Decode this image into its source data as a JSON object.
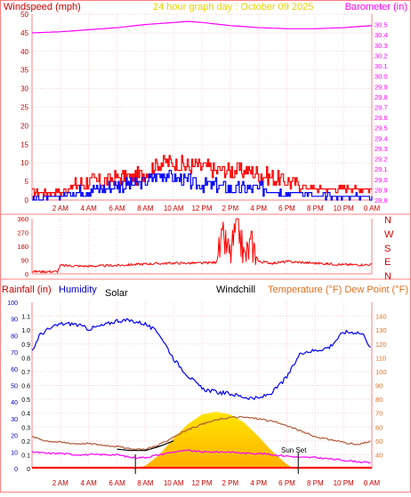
{
  "header": {
    "graph_title": "24 hour graph day : October 09 2025",
    "left_title": "Windspeed (mph)",
    "right_title": "Barometer (in)"
  },
  "colors": {
    "windspeed": "#ff0000",
    "gust": "#ff0000",
    "average": "#0000ff",
    "barometer": "#ff00ff",
    "direction": "#ff0000",
    "humidity": "#0000ff",
    "temperature": "#b05a3a",
    "dewpoint": "#ff00ff",
    "windchill": "#000000",
    "solar_fill": "#ffd700",
    "axis": "#ff8080",
    "grid": "#ffd0d0"
  },
  "time_ticks": [
    "2 AM",
    "4 AM",
    "6 AM",
    "8 AM",
    "10 AM",
    "12 PM",
    "2 PM",
    "4 PM",
    "6 PM",
    "8 PM",
    "10 PM",
    "0 AM"
  ],
  "compass": [
    "N",
    "W",
    "S",
    "E",
    "N"
  ],
  "chart_data": [
    {
      "type": "line",
      "title": "24 hour graph day : October 09 2025",
      "panel": "wind-barometer",
      "ylabel": "Windspeed (mph)",
      "y2label": "Barometer (in)",
      "x_unit": "hours",
      "xlim": [
        0,
        24
      ],
      "ylim": [
        0,
        50
      ],
      "yticks": [
        0,
        5,
        10,
        15,
        20,
        25,
        30,
        35,
        40,
        45,
        50
      ],
      "y2lim": [
        28.8,
        30.6
      ],
      "y2ticks": [
        "28.8",
        "28.9",
        "29.0",
        "29.1",
        "29.2",
        "29.3",
        "29.4",
        "29.5",
        "29.6",
        "29.7",
        "29.8",
        "29.9",
        "30.0",
        "30.1",
        "30.2",
        "30.3",
        "30.4",
        "30.5"
      ],
      "series": [
        {
          "name": "Barometer",
          "axis": "right",
          "x": [
            0,
            2,
            4,
            6,
            8,
            10,
            11,
            12,
            14,
            16,
            18,
            20,
            22,
            24
          ],
          "values": [
            30.42,
            30.43,
            30.45,
            30.47,
            30.5,
            30.52,
            30.53,
            30.52,
            30.49,
            30.47,
            30.46,
            30.46,
            30.47,
            30.49
          ]
        },
        {
          "name": "Gust",
          "axis": "left",
          "x": [
            0,
            1,
            2,
            3,
            4,
            5,
            6,
            7,
            8,
            8.5,
            9,
            9.5,
            10,
            11,
            12,
            13,
            14,
            15,
            16,
            17,
            18,
            19,
            20,
            21,
            22,
            23,
            24
          ],
          "values": [
            2,
            2,
            2,
            4,
            5,
            5,
            6,
            6,
            7,
            9,
            10,
            10,
            10,
            9,
            9,
            8,
            8,
            8,
            7,
            6,
            5,
            4,
            3,
            3,
            3,
            3,
            3
          ]
        },
        {
          "name": "Average",
          "axis": "left",
          "x": [
            0,
            1,
            2,
            3,
            4,
            5,
            6,
            7,
            8,
            8.5,
            9,
            9.5,
            10,
            11,
            12,
            13,
            14,
            15,
            16,
            17,
            18,
            19,
            20,
            21,
            22,
            23,
            24
          ],
          "values": [
            0.5,
            0.5,
            1,
            2,
            3,
            3,
            4,
            4,
            5,
            6,
            7,
            7,
            6,
            5,
            4,
            4,
            3,
            3,
            3,
            3,
            2,
            2,
            1,
            1,
            1,
            1,
            1
          ]
        }
      ]
    },
    {
      "type": "line",
      "panel": "wind-direction",
      "x_unit": "hours",
      "xlim": [
        0,
        24
      ],
      "ylim": [
        0,
        360
      ],
      "yticks": [
        0,
        90,
        180,
        270,
        360
      ],
      "series": [
        {
          "name": "Wind direction",
          "x": [
            0,
            1.8,
            2,
            4,
            6,
            8,
            10,
            12,
            13,
            13.5,
            14,
            14.5,
            15,
            15.5,
            16,
            17,
            18,
            20,
            22,
            24
          ],
          "values": [
            15,
            15,
            55,
            50,
            55,
            65,
            70,
            70,
            75,
            230,
            120,
            330,
            100,
            200,
            80,
            70,
            80,
            70,
            60,
            60
          ]
        }
      ]
    },
    {
      "type": "line",
      "panel": "rain-humidity-temperature",
      "x_unit": "hours",
      "xlim": [
        0,
        24
      ],
      "ylabel": "Rainfall (in)",
      "ylim": [
        0,
        1.2
      ],
      "yticks": [
        0,
        0.1,
        0.2,
        0.3,
        0.4,
        0.5,
        0.6,
        0.7,
        0.8,
        0.9,
        1.0,
        1.1
      ],
      "humidity_ylim": [
        0,
        100
      ],
      "humidity_ticks": [
        0,
        10,
        20,
        30,
        40,
        50,
        60,
        70,
        80,
        90,
        100
      ],
      "y2label": "Temperature (°F) Dew Point (°F)",
      "y2lim": [
        30,
        150
      ],
      "y2ticks": [
        40,
        50,
        60,
        70,
        80,
        90,
        100,
        110,
        120,
        130,
        140
      ],
      "labels": [
        "Humidity",
        "Solar",
        "Windchill",
        "Sun Set"
      ],
      "series": [
        {
          "name": "Humidity",
          "axis": "humidity",
          "x": [
            0,
            0.5,
            1,
            2,
            3,
            4,
            5,
            6,
            7,
            8,
            9,
            10,
            11,
            12,
            13,
            14,
            15,
            16,
            17,
            18,
            19,
            20,
            21,
            22,
            23,
            23.5,
            24
          ],
          "values": [
            70,
            80,
            83,
            87,
            87,
            84,
            86,
            89,
            89,
            87,
            81,
            66,
            56,
            48,
            46,
            45,
            43,
            42,
            46,
            55,
            70,
            71,
            73,
            82,
            82,
            80,
            70
          ]
        },
        {
          "name": "Temperature",
          "axis": "right",
          "x": [
            0,
            1,
            2,
            3,
            4,
            5,
            6,
            7,
            8,
            9,
            10,
            11,
            12,
            13,
            14,
            15,
            16,
            17,
            18,
            19,
            20,
            21,
            22,
            23,
            24
          ],
          "values": [
            53,
            50,
            49,
            48,
            48,
            47,
            46,
            44,
            44,
            47,
            53,
            58,
            62,
            65,
            67,
            67,
            66,
            64,
            61,
            57,
            53,
            51,
            49,
            47,
            50
          ]
        },
        {
          "name": "Dew Point",
          "axis": "right",
          "x": [
            0,
            1,
            2,
            3,
            4,
            5,
            6,
            7,
            8,
            9,
            10,
            11,
            12,
            13,
            14,
            15,
            16,
            17,
            18,
            19,
            20,
            21,
            22,
            23,
            24
          ],
          "values": [
            42,
            41,
            41,
            40,
            40,
            40,
            40,
            38,
            38,
            40,
            42,
            43,
            42,
            42,
            42,
            41,
            41,
            40,
            39,
            38,
            38,
            37,
            36,
            35,
            34
          ]
        },
        {
          "name": "Windchill",
          "axis": "right",
          "x": [
            6,
            7,
            8,
            9,
            10
          ],
          "values": [
            44,
            43,
            43,
            46,
            50
          ]
        },
        {
          "name": "Solar",
          "axis": "left",
          "x": [
            7,
            8,
            9,
            10,
            11,
            12,
            13,
            14,
            15,
            16,
            17,
            18,
            18.5
          ],
          "values": [
            0,
            0.02,
            0.1,
            0.22,
            0.32,
            0.39,
            0.41,
            0.39,
            0.33,
            0.23,
            0.12,
            0.03,
            0
          ]
        }
      ],
      "sunrise_hour": 7.3,
      "sunset_hour": 18.8
    }
  ]
}
